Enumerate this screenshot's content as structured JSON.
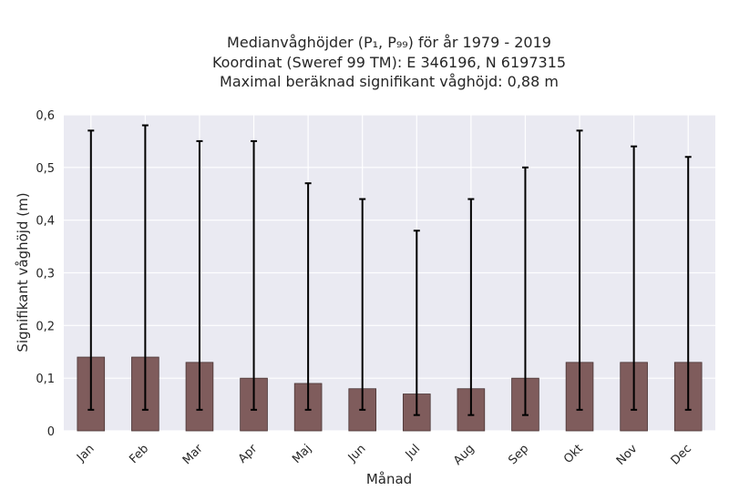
{
  "chart_data": {
    "type": "bar",
    "title": [
      "Medianvåghöjder (P₁, P₉₉) för år 1979 - 2019",
      "Koordinat (Sweref 99 TM): E 346196, N 6197315",
      "Maximal beräknad signifikant våghöjd: 0,88 m"
    ],
    "xlabel": "Månad",
    "ylabel": "Signifikant våghöjd (m)",
    "ylim": [
      0,
      0.6
    ],
    "yticks": [
      "0",
      "0,1",
      "0,2",
      "0,3",
      "0,4",
      "0,5",
      "0,6"
    ],
    "categories": [
      "Jan",
      "Feb",
      "Mar",
      "Apr",
      "Maj",
      "Jun",
      "Jul",
      "Aug",
      "Sep",
      "Okt",
      "Nov",
      "Dec"
    ],
    "values": [
      0.14,
      0.14,
      0.13,
      0.1,
      0.09,
      0.08,
      0.07,
      0.08,
      0.1,
      0.13,
      0.13,
      0.13
    ],
    "p1": [
      0.04,
      0.04,
      0.04,
      0.04,
      0.04,
      0.04,
      0.03,
      0.03,
      0.03,
      0.04,
      0.04,
      0.04
    ],
    "p99": [
      0.57,
      0.58,
      0.55,
      0.55,
      0.47,
      0.44,
      0.38,
      0.44,
      0.5,
      0.57,
      0.54,
      0.52
    ],
    "bar_color": "#7f5c5c",
    "errorbar_color": "#000000",
    "background": "#eaeaf2",
    "grid": true
  }
}
